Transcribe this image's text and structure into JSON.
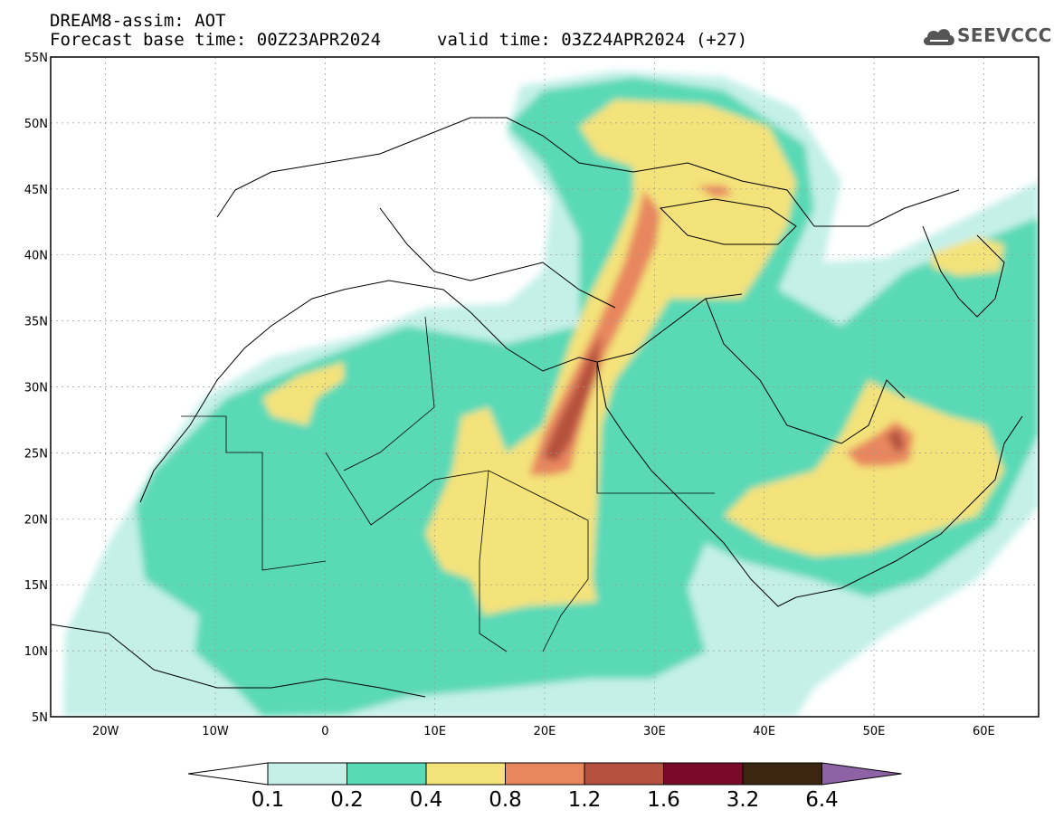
{
  "header": {
    "model_title": "DREAM8-assim: AOT",
    "base_time": "Forecast base time: 00Z23APR2024",
    "valid_time": "valid time: 03Z24APR2024 (+27)",
    "logo_text": "SEEVCCC"
  },
  "map": {
    "lon_range": [
      -25,
      65
    ],
    "lat_range": [
      5,
      55
    ],
    "lat_ticks": [
      "5N",
      "10N",
      "15N",
      "20N",
      "25N",
      "30N",
      "35N",
      "40N",
      "45N",
      "50N",
      "55N"
    ],
    "lon_ticks": [
      "20W",
      "10W",
      "0",
      "10E",
      "20E",
      "30E",
      "40E",
      "50E",
      "60E"
    ],
    "grid": true
  },
  "colorbar": {
    "labels": [
      "0.1",
      "0.2",
      "0.4",
      "0.8",
      "1.2",
      "1.6",
      "3.2",
      "6.4"
    ],
    "colors": [
      "#ffffff",
      "#c4f0e9",
      "#5ad9b6",
      "#f4e27a",
      "#e8875e",
      "#b5513e",
      "#7a0a2a",
      "#3c2612",
      "#8f62a6"
    ]
  }
}
